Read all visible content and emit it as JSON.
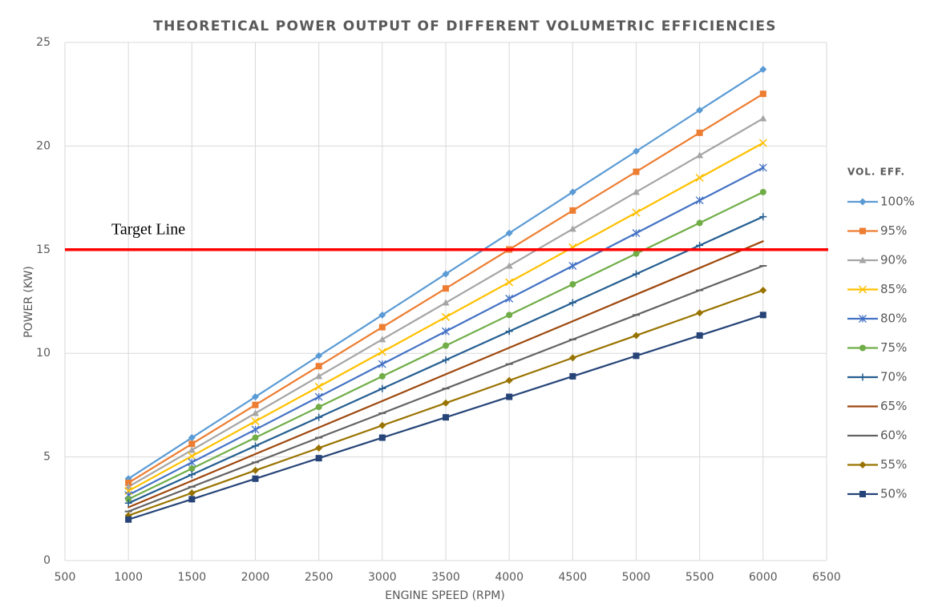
{
  "chart_data": {
    "type": "line",
    "title": "THEORETICAL POWER OUTPUT OF DIFFERENT VOLUMETRIC EFFICIENCIES",
    "xlabel": "ENGINE SPEED (RPM)",
    "ylabel": "POWER (KW)",
    "legend_title": "VOL. EFF.",
    "legend": "right",
    "grid": true,
    "x": [
      1000,
      1500,
      2000,
      2500,
      3000,
      3500,
      4000,
      4500,
      5000,
      5500,
      6000
    ],
    "xlim": [
      500,
      6500
    ],
    "xticks": [
      500,
      1000,
      1500,
      2000,
      2500,
      3000,
      3500,
      4000,
      4500,
      5000,
      5500,
      6000,
      6500
    ],
    "ylim": [
      0,
      25
    ],
    "yticks": [
      0,
      5,
      10,
      15,
      20,
      25
    ],
    "target": {
      "label": "Target Line",
      "value": 15,
      "color": "#ff0000"
    },
    "series": [
      {
        "name": "100%",
        "color": "#5b9bd5",
        "marker": "diamond",
        "values": [
          3.95,
          5.93,
          7.9,
          9.88,
          11.85,
          13.83,
          15.8,
          17.78,
          19.75,
          21.73,
          23.7
        ]
      },
      {
        "name": "95%",
        "color": "#ed7d31",
        "marker": "square",
        "values": [
          3.75,
          5.63,
          7.51,
          9.38,
          11.26,
          13.13,
          15.01,
          16.89,
          18.76,
          20.64,
          22.52
        ]
      },
      {
        "name": "90%",
        "color": "#a5a5a5",
        "marker": "triangle",
        "values": [
          3.56,
          5.33,
          7.11,
          8.89,
          10.67,
          12.44,
          14.22,
          16.0,
          17.78,
          19.55,
          21.33
        ]
      },
      {
        "name": "85%",
        "color": "#ffc000",
        "marker": "x",
        "values": [
          3.36,
          5.04,
          6.72,
          8.39,
          10.07,
          11.75,
          13.43,
          15.11,
          16.79,
          18.47,
          20.15
        ]
      },
      {
        "name": "80%",
        "color": "#4472c4",
        "marker": "star",
        "values": [
          3.16,
          4.74,
          6.32,
          7.9,
          9.48,
          11.06,
          12.64,
          14.22,
          15.8,
          17.38,
          18.96
        ]
      },
      {
        "name": "75%",
        "color": "#70ad47",
        "marker": "circle",
        "values": [
          2.96,
          4.44,
          5.93,
          7.41,
          8.89,
          10.37,
          11.85,
          13.33,
          14.81,
          16.29,
          17.78
        ]
      },
      {
        "name": "70%",
        "color": "#255e91",
        "marker": "plus",
        "values": [
          2.77,
          4.15,
          5.53,
          6.91,
          8.3,
          9.68,
          11.06,
          12.44,
          13.83,
          15.21,
          16.59
        ]
      },
      {
        "name": "65%",
        "color": "#9e480e",
        "marker": "none",
        "values": [
          2.57,
          3.85,
          5.14,
          6.42,
          7.7,
          8.99,
          10.27,
          11.55,
          12.84,
          14.12,
          15.41
        ]
      },
      {
        "name": "60%",
        "color": "#636363",
        "marker": "dash",
        "values": [
          2.37,
          3.56,
          4.74,
          5.93,
          7.11,
          8.3,
          9.48,
          10.67,
          11.85,
          13.04,
          14.22
        ]
      },
      {
        "name": "55%",
        "color": "#997300",
        "marker": "diamond",
        "values": [
          2.17,
          3.26,
          4.35,
          5.43,
          6.52,
          7.6,
          8.69,
          9.78,
          10.86,
          11.95,
          13.04
        ]
      },
      {
        "name": "50%",
        "color": "#264478",
        "marker": "square",
        "values": [
          1.98,
          2.96,
          3.95,
          4.94,
          5.93,
          6.91,
          7.9,
          8.89,
          9.88,
          10.86,
          11.85
        ]
      }
    ]
  }
}
